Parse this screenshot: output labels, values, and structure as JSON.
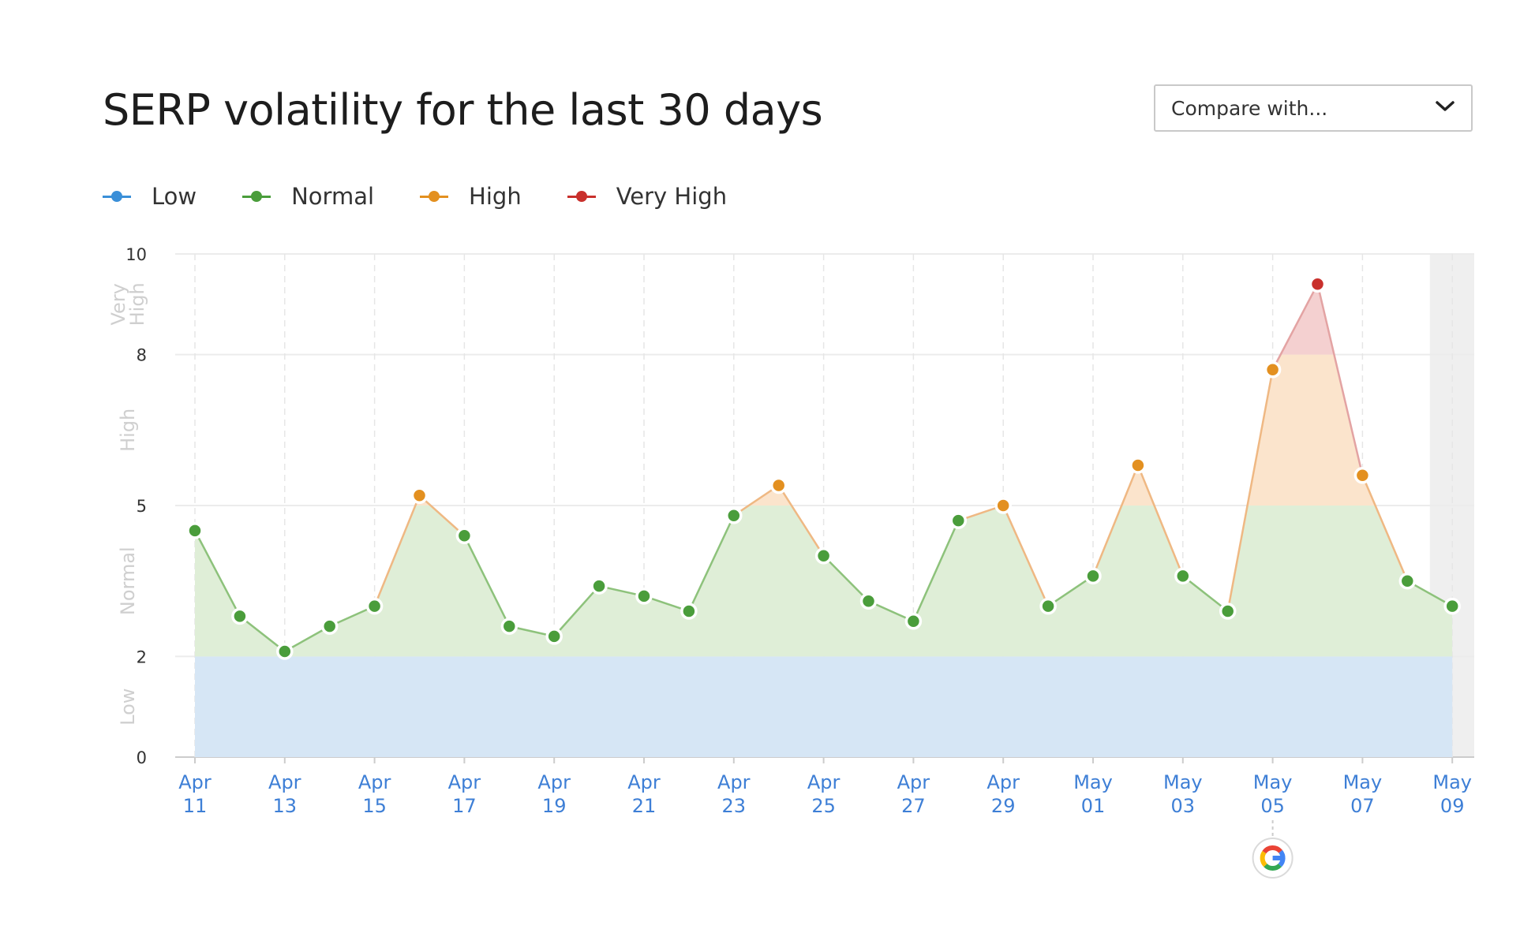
{
  "title": "SERP volatility for the last 30 days",
  "compare": {
    "label": "Compare with..."
  },
  "legend": [
    {
      "label": "Low",
      "color": "#3a8fd8"
    },
    {
      "label": "Normal",
      "color": "#4a9d3b"
    },
    {
      "label": "High",
      "color": "#e39020"
    },
    {
      "label": "Very High",
      "color": "#c9302c"
    }
  ],
  "chart_data": {
    "type": "line",
    "title": "SERP volatility for the last 30 days",
    "ylim": [
      0,
      10
    ],
    "y_ticks": [
      "0",
      "2",
      "5",
      "8",
      "10"
    ],
    "bands": [
      {
        "label": "Low",
        "from": 0,
        "to": 2,
        "color": "#d6e6f5"
      },
      {
        "label": "Normal",
        "from": 2,
        "to": 5,
        "color": "#dfeed7"
      },
      {
        "label": "High",
        "from": 5,
        "to": 8,
        "color": "#fbe4cc"
      },
      {
        "label": "Very\nHigh",
        "from": 8,
        "to": 10,
        "color": "#f4d0d0"
      }
    ],
    "x_tick_labels": [
      [
        "Apr",
        "11"
      ],
      [
        "Apr",
        "13"
      ],
      [
        "Apr",
        "15"
      ],
      [
        "Apr",
        "17"
      ],
      [
        "Apr",
        "19"
      ],
      [
        "Apr",
        "21"
      ],
      [
        "Apr",
        "23"
      ],
      [
        "Apr",
        "25"
      ],
      [
        "Apr",
        "27"
      ],
      [
        "Apr",
        "29"
      ],
      [
        "May",
        "01"
      ],
      [
        "May",
        "03"
      ],
      [
        "May",
        "05"
      ],
      [
        "May",
        "07"
      ],
      [
        "May",
        "09"
      ]
    ],
    "x": [
      "Apr 11",
      "Apr 12",
      "Apr 13",
      "Apr 14",
      "Apr 15",
      "Apr 16",
      "Apr 17",
      "Apr 18",
      "Apr 19",
      "Apr 20",
      "Apr 21",
      "Apr 22",
      "Apr 23",
      "Apr 24",
      "Apr 25",
      "Apr 26",
      "Apr 27",
      "Apr 28",
      "Apr 29",
      "Apr 30",
      "May 01",
      "May 02",
      "May 03",
      "May 04",
      "May 05",
      "May 06",
      "May 07",
      "May 08",
      "May 09"
    ],
    "series": [
      {
        "values": [
          4.5,
          2.8,
          2.1,
          2.6,
          3.0,
          5.2,
          4.4,
          2.6,
          2.4,
          3.4,
          3.2,
          2.9,
          4.8,
          5.4,
          4.0,
          3.1,
          2.7,
          4.7,
          5.0,
          3.0,
          3.6,
          5.8,
          3.6,
          2.9,
          7.7,
          9.4,
          5.6,
          3.5,
          3.0
        ]
      }
    ],
    "point_colors": {
      "normal": "#4a9d3b",
      "high": "#e39020",
      "very_high": "#c9302c"
    },
    "line_colors": {
      "normal": "#8dc27b",
      "high": "#efb883",
      "very_high": "#e3a3a3"
    },
    "grid": true,
    "legend_position": "top-left",
    "highlighted_day": "May 09",
    "event_marker": {
      "date": "May 05",
      "icon": "google-icon"
    }
  }
}
